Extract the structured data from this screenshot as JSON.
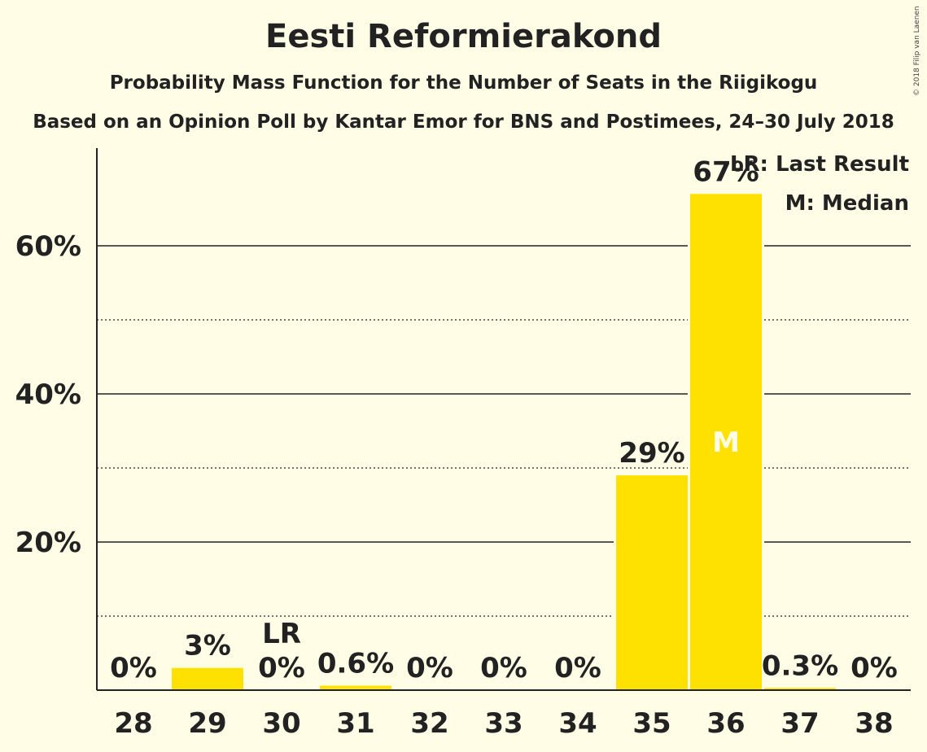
{
  "chart_data": {
    "type": "bar",
    "title": "Eesti Reformierakond",
    "subtitle": "Probability Mass Function for the Number of Seats in the Riigikogu",
    "subtitle2": "Based on an Opinion Poll by Kantar Emor for BNS and Postimees, 24–30 July 2018",
    "categories": [
      "28",
      "29",
      "30",
      "31",
      "32",
      "33",
      "34",
      "35",
      "36",
      "37",
      "38"
    ],
    "values": [
      0,
      3,
      0,
      0.6,
      0,
      0,
      0,
      29,
      67,
      0.3,
      0
    ],
    "labels": [
      "0%",
      "3%",
      "0%",
      "0.6%",
      "0%",
      "0%",
      "0%",
      "29%",
      "67%",
      "0.3%",
      "0%"
    ],
    "ylim": [
      0,
      73
    ],
    "yticks": [
      20,
      40,
      60
    ],
    "ytick_labels": [
      "20%",
      "40%",
      "60%"
    ],
    "minor_gridlines": [
      10,
      30,
      50
    ],
    "last_result": {
      "category": "30",
      "label": "LR"
    },
    "median": {
      "category": "36",
      "label": "M"
    },
    "legend": {
      "placement": "top-right",
      "lr": "LR: Last Result",
      "m": "M: Median"
    },
    "grid": true
  },
  "colors": {
    "bar": "#FFE100",
    "background": "#FFFDE6",
    "text": "#222222",
    "median_label": "#FFFDE6"
  },
  "copyright": "© 2018 Filip van Laenen"
}
